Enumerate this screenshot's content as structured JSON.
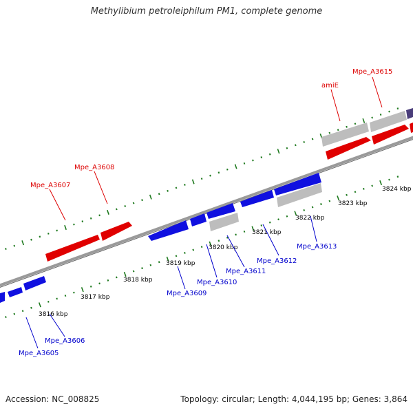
{
  "title": "Methylibium petroleiphilum PM1, complete genome",
  "footer": {
    "accession_label": "Accession:",
    "accession_value": "NC_008825",
    "topology_label": "Topology:",
    "topology_value": "circular;",
    "length_label": "Length:",
    "length_value": "4,044,195 bp;",
    "genes_label": "Genes:",
    "genes_value": "3,864"
  },
  "colors": {
    "forward_gene": "#e00000",
    "reverse_gene": "#1010e0",
    "other_feature": "#bdbdbd",
    "dark_feature": "#4a3d7a",
    "tick": "#1f7a1f",
    "backbone": "#8a8a8a",
    "label_forward": "#dd0000",
    "label_reverse": "#0000cc",
    "kbp_label": "#000000"
  },
  "kbp_labels": [
    "3816 kbp",
    "3817 kbp",
    "3818 kbp",
    "3819 kbp",
    "3820 kbp",
    "3821 kbp",
    "3822 kbp",
    "3823 kbp",
    "3824 kbp"
  ],
  "forward_labels": [
    "Mpe_A3607",
    "Mpe_A3608",
    "amiE",
    "Mpe_A3615"
  ],
  "reverse_labels": [
    "Mpe_A3605",
    "Mpe_A3606",
    "Mpe_A3609",
    "Mpe_A3610",
    "Mpe_A3611",
    "Mpe_A3612",
    "Mpe_A3613"
  ]
}
